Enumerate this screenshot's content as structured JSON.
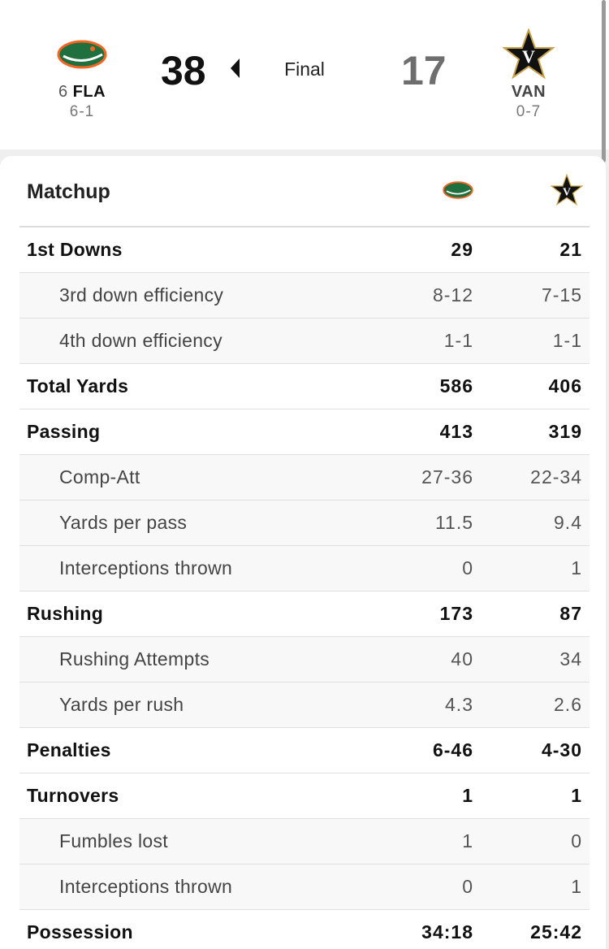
{
  "game": {
    "status": "Final",
    "home": {
      "rank": "6",
      "abbr": "FLA",
      "record": "6-1",
      "score": "38",
      "logo": "gators-logo",
      "color": "#0b6b3a"
    },
    "away": {
      "abbr": "VAN",
      "record": "0-7",
      "score": "17",
      "logo": "vanderbilt-star-logo",
      "color": "#c8a24a"
    }
  },
  "matchup": {
    "title": "Matchup",
    "rows": [
      {
        "label": "1st Downs",
        "home": "29",
        "away": "21",
        "type": "main"
      },
      {
        "label": "3rd down efficiency",
        "home": "8-12",
        "away": "7-15",
        "type": "sub"
      },
      {
        "label": "4th down efficiency",
        "home": "1-1",
        "away": "1-1",
        "type": "sub"
      },
      {
        "label": "Total Yards",
        "home": "586",
        "away": "406",
        "type": "main"
      },
      {
        "label": "Passing",
        "home": "413",
        "away": "319",
        "type": "main"
      },
      {
        "label": "Comp-Att",
        "home": "27-36",
        "away": "22-34",
        "type": "sub"
      },
      {
        "label": "Yards per pass",
        "home": "11.5",
        "away": "9.4",
        "type": "sub"
      },
      {
        "label": "Interceptions thrown",
        "home": "0",
        "away": "1",
        "type": "sub"
      },
      {
        "label": "Rushing",
        "home": "173",
        "away": "87",
        "type": "main"
      },
      {
        "label": "Rushing Attempts",
        "home": "40",
        "away": "34",
        "type": "sub"
      },
      {
        "label": "Yards per rush",
        "home": "4.3",
        "away": "2.6",
        "type": "sub"
      },
      {
        "label": "Penalties",
        "home": "6-46",
        "away": "4-30",
        "type": "main"
      },
      {
        "label": "Turnovers",
        "home": "1",
        "away": "1",
        "type": "main"
      },
      {
        "label": "Fumbles lost",
        "home": "1",
        "away": "0",
        "type": "sub"
      },
      {
        "label": "Interceptions thrown",
        "home": "0",
        "away": "1",
        "type": "sub"
      },
      {
        "label": "Possession",
        "home": "34:18",
        "away": "25:42",
        "type": "main"
      }
    ]
  }
}
